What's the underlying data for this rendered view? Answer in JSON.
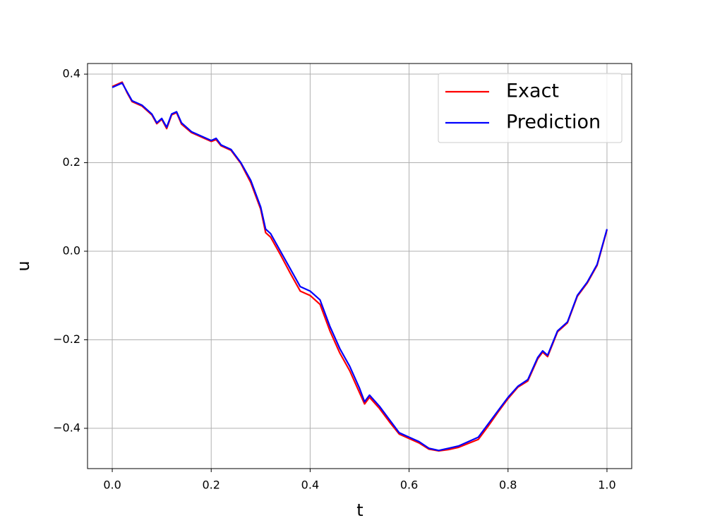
{
  "chart_data": {
    "type": "line",
    "xlabel": "t",
    "ylabel": "u",
    "x": [
      0,
      0.02,
      0.03,
      0.04,
      0.06,
      0.08,
      0.09,
      0.1,
      0.11,
      0.12,
      0.13,
      0.14,
      0.16,
      0.18,
      0.2,
      0.21,
      0.22,
      0.24,
      0.26,
      0.28,
      0.3,
      0.31,
      0.32,
      0.34,
      0.36,
      0.38,
      0.4,
      0.42,
      0.44,
      0.46,
      0.48,
      0.5,
      0.51,
      0.52,
      0.54,
      0.56,
      0.58,
      0.6,
      0.62,
      0.64,
      0.66,
      0.68,
      0.7,
      0.72,
      0.74,
      0.76,
      0.78,
      0.8,
      0.82,
      0.84,
      0.86,
      0.87,
      0.88,
      0.9,
      0.92,
      0.94,
      0.96,
      0.98,
      1.0
    ],
    "series": [
      {
        "name": "Exact",
        "color": "#ff0000",
        "values": [
          0.372,
          0.382,
          0.358,
          0.338,
          0.328,
          0.308,
          0.288,
          0.298,
          0.277,
          0.308,
          0.313,
          0.287,
          0.268,
          0.258,
          0.248,
          0.252,
          0.238,
          0.228,
          0.198,
          0.155,
          0.095,
          0.042,
          0.032,
          -0.008,
          -0.05,
          -0.09,
          -0.1,
          -0.12,
          -0.18,
          -0.23,
          -0.27,
          -0.32,
          -0.345,
          -0.33,
          -0.355,
          -0.385,
          -0.413,
          -0.423,
          -0.433,
          -0.447,
          -0.451,
          -0.448,
          -0.443,
          -0.434,
          -0.425,
          -0.395,
          -0.363,
          -0.333,
          -0.307,
          -0.293,
          -0.243,
          -0.228,
          -0.238,
          -0.182,
          -0.162,
          -0.102,
          -0.072,
          -0.032,
          0.048
        ]
      },
      {
        "name": "Prediction",
        "color": "#0000ff",
        "values": [
          0.37,
          0.38,
          0.36,
          0.34,
          0.33,
          0.31,
          0.29,
          0.3,
          0.28,
          0.31,
          0.315,
          0.29,
          0.27,
          0.26,
          0.25,
          0.255,
          0.24,
          0.23,
          0.2,
          0.16,
          0.1,
          0.05,
          0.04,
          0.0,
          -0.04,
          -0.08,
          -0.09,
          -0.11,
          -0.17,
          -0.22,
          -0.26,
          -0.31,
          -0.34,
          -0.325,
          -0.35,
          -0.38,
          -0.41,
          -0.42,
          -0.43,
          -0.445,
          -0.45,
          -0.445,
          -0.44,
          -0.43,
          -0.42,
          -0.39,
          -0.36,
          -0.33,
          -0.305,
          -0.29,
          -0.24,
          -0.225,
          -0.235,
          -0.18,
          -0.16,
          -0.1,
          -0.07,
          -0.03,
          0.05
        ]
      }
    ],
    "xlim": [
      -0.05,
      1.05
    ],
    "ylim": [
      -0.491,
      0.424
    ],
    "xticks": [
      {
        "value": 0,
        "label": "0.0"
      },
      0.2,
      0.4,
      0.6,
      0.8,
      {
        "value": 1,
        "label": "1.0"
      }
    ],
    "yticks": [
      {
        "value": -0.4,
        "label": "−0.4"
      },
      {
        "value": -0.2,
        "label": "−0.2"
      },
      {
        "value": 0,
        "label": "0.0"
      },
      0.2,
      0.4
    ],
    "grid": true,
    "legend": "upper right"
  }
}
